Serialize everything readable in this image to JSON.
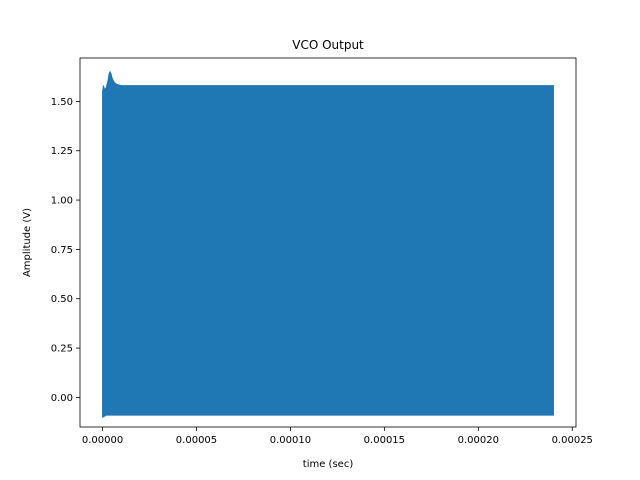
{
  "chart_data": {
    "type": "line",
    "title": "VCO Output",
    "xlabel": "time (sec)",
    "ylabel": "Amplitude (V)",
    "xlim": [
      -1.2e-05,
      0.000252
    ],
    "ylim": [
      -0.15,
      1.72
    ],
    "grid": false,
    "xticks": [
      0.0,
      5e-05,
      0.0001,
      0.00015,
      0.0002,
      0.00025
    ],
    "xtick_labels": [
      "0.00000",
      "0.00005",
      "0.00010",
      "0.00015",
      "0.00020",
      "0.00025"
    ],
    "yticks": [
      0.0,
      0.25,
      0.5,
      0.75,
      1.0,
      1.25,
      1.5
    ],
    "ytick_labels": [
      "0.00",
      "0.25",
      "0.50",
      "0.75",
      "1.00",
      "1.25",
      "1.50"
    ],
    "series": [
      {
        "color": "#1f77b4",
        "x_start": 0.0,
        "x_end": 0.00024,
        "upper_envelope": {
          "x": [
            0.0,
            5e-07,
            1e-06,
            2e-06,
            3e-06,
            3.5e-06,
            4e-06,
            4.5e-06,
            5e-06,
            6e-06,
            7e-06,
            8e-06,
            1e-05,
            2e-05,
            0.0001,
            0.00024
          ],
          "y": [
            1.55,
            1.58,
            1.56,
            1.57,
            1.61,
            1.64,
            1.65,
            1.64,
            1.62,
            1.6,
            1.59,
            1.585,
            1.58,
            1.58,
            1.58,
            1.58
          ]
        },
        "lower_envelope": {
          "x": [
            0.0,
            1e-06,
            2e-06,
            0.00024
          ],
          "y": [
            -0.1,
            -0.095,
            -0.09,
            -0.09
          ]
        }
      }
    ]
  }
}
